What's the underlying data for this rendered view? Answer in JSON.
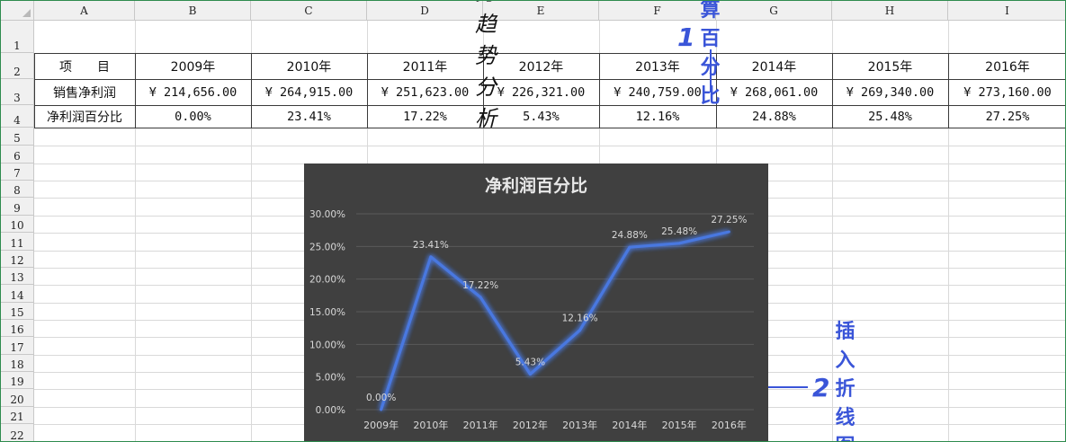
{
  "sheet": {
    "columns": [
      "A",
      "B",
      "C",
      "D",
      "E",
      "F",
      "G",
      "H",
      "I"
    ],
    "rows": [
      "1",
      "2",
      "3",
      "4",
      "5",
      "6",
      "7",
      "8",
      "9",
      "10",
      "11",
      "12",
      "13",
      "14",
      "15",
      "16",
      "17",
      "18",
      "19",
      "20",
      "21",
      "22"
    ],
    "title": "财务趋势分析",
    "header_row": [
      "项　　目",
      "2009年",
      "2010年",
      "2011年",
      "2012年",
      "2013年",
      "2014年",
      "2015年",
      "2016年"
    ],
    "sales_row": [
      "销售净利润",
      "¥ 214,656.00",
      "¥ 264,915.00",
      "¥ 251,623.00",
      "¥ 226,321.00",
      "¥ 240,759.00",
      "¥ 268,061.00",
      "¥ 269,340.00",
      "¥ 273,160.00"
    ],
    "pct_row": [
      "净利润百分比",
      "0.00%",
      "23.41%",
      "17.22%",
      "5.43%",
      "12.16%",
      "24.88%",
      "25.48%",
      "27.25%"
    ]
  },
  "annotations": {
    "step1_num": "1",
    "step1_text": "计算百分比",
    "step2_num": "2",
    "step2_text": "插入折线图",
    "color": "#3a55d8"
  },
  "chart_data": {
    "type": "line",
    "title": "净利润百分比",
    "categories": [
      "2009年",
      "2010年",
      "2011年",
      "2012年",
      "2013年",
      "2014年",
      "2015年",
      "2016年"
    ],
    "series": [
      {
        "values": [
          0.0,
          23.41,
          17.22,
          5.43,
          12.16,
          24.88,
          25.48,
          27.25
        ],
        "labels": [
          "0.00%",
          "23.41%",
          "17.22%",
          "5.43%",
          "12.16%",
          "24.88%",
          "25.48%",
          "27.25%"
        ]
      }
    ],
    "y_ticks": [
      "0.00%",
      "5.00%",
      "10.00%",
      "15.00%",
      "20.00%",
      "25.00%",
      "30.00%"
    ],
    "ylim": [
      0,
      30
    ],
    "grid": true,
    "colors": {
      "background": "#404040",
      "line": "#4a78e0",
      "text": "#d9d9d9",
      "grid": "#5a5a5a"
    }
  }
}
